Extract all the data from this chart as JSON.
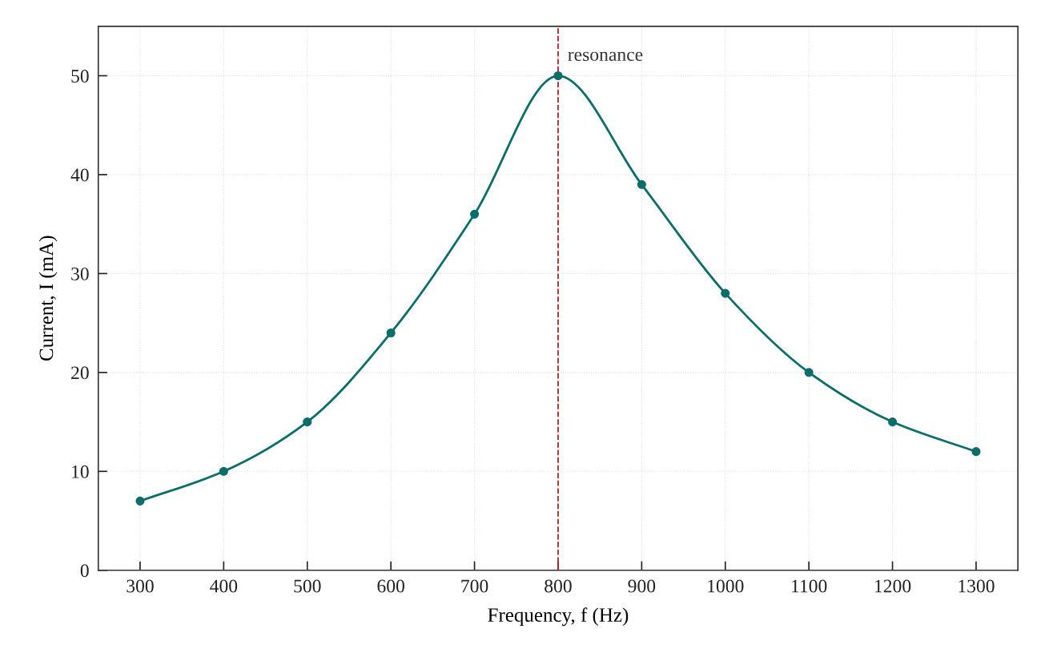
{
  "chart_data": {
    "type": "line",
    "xlabel": "Frequency, f (Hz)",
    "ylabel": "Current, I (mA)",
    "x": [
      300,
      400,
      500,
      600,
      700,
      800,
      900,
      1000,
      1100,
      1200,
      1300
    ],
    "series": [
      {
        "color": "#0b6e69",
        "values": [
          7,
          10,
          15,
          24,
          36,
          50,
          39,
          28,
          20,
          15,
          12
        ]
      }
    ],
    "xlim": [
      250,
      1350
    ],
    "ylim": [
      0,
      55
    ],
    "xticks": [
      300,
      400,
      500,
      600,
      700,
      800,
      900,
      1000,
      1100,
      1200,
      1300
    ],
    "yticks": [
      0,
      10,
      20,
      30,
      40,
      50
    ],
    "ref_lines": [
      {
        "axis": "x",
        "value": 800,
        "label": "resonance",
        "color": "#b22222",
        "line_style": "dashed"
      }
    ],
    "grid": true,
    "marker": "circle",
    "line_style": "solid"
  }
}
